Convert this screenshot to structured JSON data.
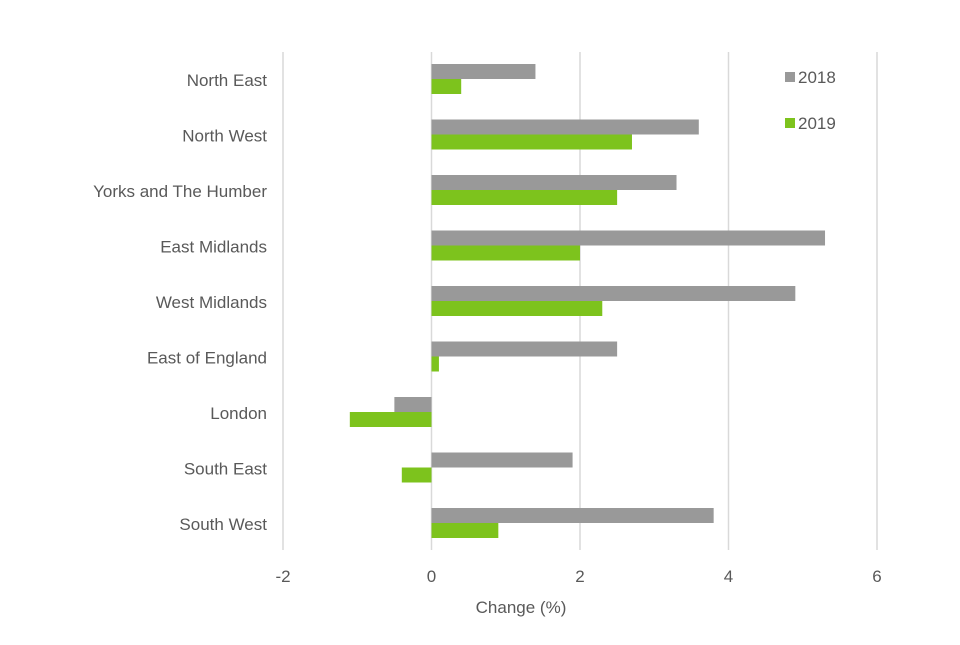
{
  "chart_data": {
    "type": "bar",
    "orientation": "horizontal",
    "title": "",
    "xlabel": "Change (%)",
    "ylabel": "",
    "xlim": [
      -2,
      6
    ],
    "xticks": [
      -2,
      0,
      2,
      4,
      6
    ],
    "grid": true,
    "legend_position": "top-right",
    "categories": [
      "North East",
      "North West",
      "Yorks and The Humber",
      "East Midlands",
      "West Midlands",
      "East of England",
      "London",
      "South East",
      "South West"
    ],
    "series": [
      {
        "name": "2018",
        "color": "#999999",
        "values": [
          1.4,
          3.6,
          3.3,
          5.3,
          4.9,
          2.5,
          -0.5,
          1.9,
          3.8
        ]
      },
      {
        "name": "2019",
        "color": "#7dc31d",
        "values": [
          0.4,
          2.7,
          2.5,
          2.0,
          2.3,
          0.1,
          -1.1,
          -0.4,
          0.9
        ]
      }
    ]
  }
}
